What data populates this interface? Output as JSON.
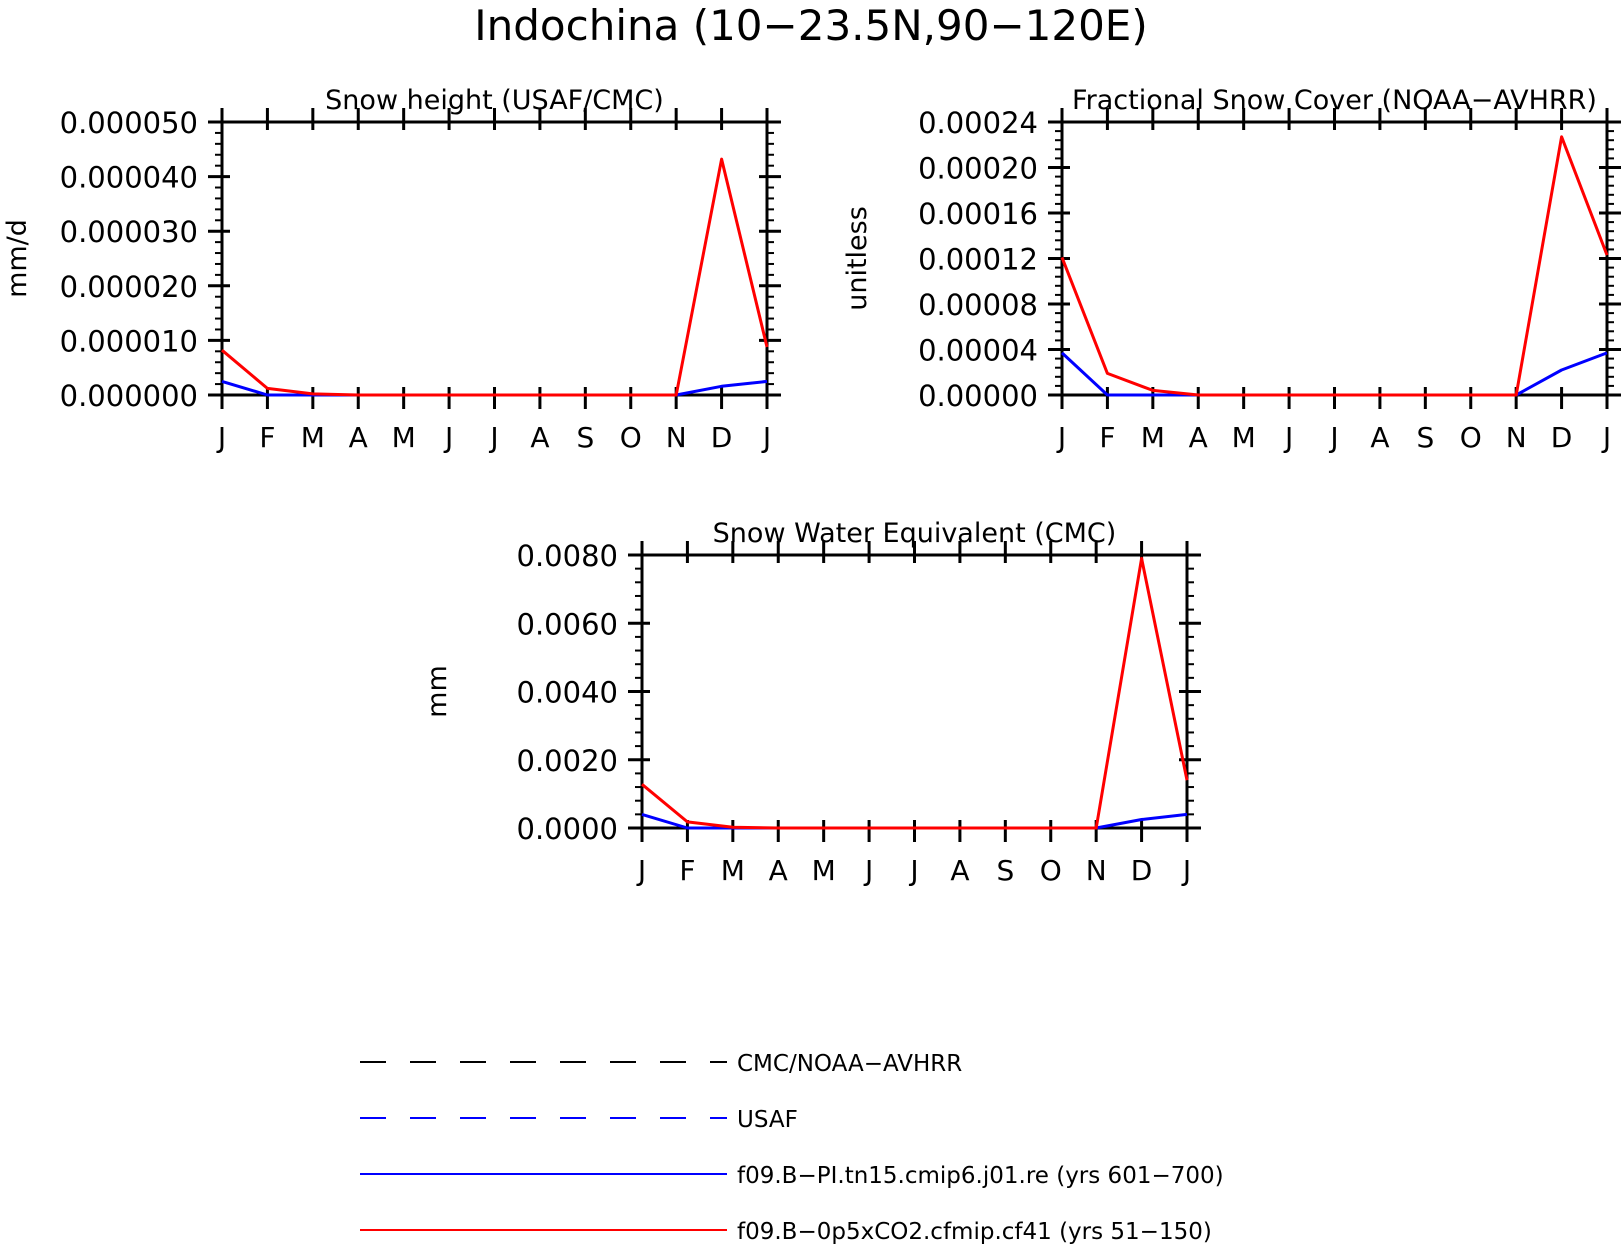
{
  "figure": {
    "title": "Indochina (10−23.5N,90−120E)"
  },
  "months": [
    "J",
    "F",
    "M",
    "A",
    "M",
    "J",
    "J",
    "A",
    "S",
    "O",
    "N",
    "D",
    "J"
  ],
  "legend": [
    {
      "label": "CMC/NOAA−AVHRR",
      "color": "#000000",
      "dash": true
    },
    {
      "label": "USAF",
      "color": "#0000ff",
      "dash": true
    },
    {
      "label": "f09.B−PI.tn15.cmip6.j01.re (yrs 601−700)",
      "color": "#0000ff",
      "dash": false
    },
    {
      "label": "f09.B−0p5xCO2.cfmip.cf41 (yrs 51−150)",
      "color": "#ff0000",
      "dash": false
    }
  ],
  "chart_data": [
    {
      "type": "line",
      "title": "Snow height (USAF/CMC)",
      "ylabel": "mm/d",
      "ylim": [
        0,
        5e-05
      ],
      "yticks": [
        "0.000000",
        "0.000010",
        "0.000020",
        "0.000030",
        "0.000040",
        "0.000050"
      ],
      "categories": [
        "J",
        "F",
        "M",
        "A",
        "M",
        "J",
        "J",
        "A",
        "S",
        "O",
        "N",
        "D",
        "J"
      ],
      "series": [
        {
          "color": "#000000",
          "values": [
            0,
            0,
            0,
            0,
            0,
            0,
            0,
            0,
            0,
            0,
            0,
            0,
            0
          ]
        },
        {
          "color": "#0000ff",
          "values": [
            2.5e-06,
            0,
            0,
            0,
            0,
            0,
            0,
            0,
            0,
            0,
            0,
            1.6e-06,
            2.5e-06
          ]
        },
        {
          "color": "#ff0000",
          "values": [
            8.2e-06,
            1.2e-06,
            2e-07,
            0,
            0,
            0,
            0,
            0,
            0,
            0,
            0,
            4.32e-05,
            8.8e-06
          ]
        }
      ]
    },
    {
      "type": "line",
      "title": "Fractional Snow Cover (NOAA−AVHRR)",
      "ylabel": "unitless",
      "ylim": [
        0,
        0.00024
      ],
      "yticks": [
        "0.00000",
        "0.00004",
        "0.00008",
        "0.00012",
        "0.00016",
        "0.00020",
        "0.00024"
      ],
      "categories": [
        "J",
        "F",
        "M",
        "A",
        "M",
        "J",
        "J",
        "A",
        "S",
        "O",
        "N",
        "D",
        "J"
      ],
      "series": [
        {
          "color": "#000000",
          "values": [
            0,
            0,
            0,
            0,
            0,
            0,
            0,
            0,
            0,
            0,
            0,
            0,
            0
          ]
        },
        {
          "color": "#0000ff",
          "values": [
            3.7e-05,
            0,
            0,
            0,
            0,
            0,
            0,
            0,
            0,
            0,
            0,
            2.2e-05,
            3.7e-05
          ]
        },
        {
          "color": "#ff0000",
          "values": [
            0.000121,
            1.9e-05,
            4e-06,
            0,
            0,
            0,
            0,
            0,
            0,
            0,
            0,
            0.000227,
            0.000123
          ]
        }
      ]
    },
    {
      "type": "line",
      "title": "Snow Water Equivalent (CMC)",
      "ylabel": "mm",
      "ylim": [
        0,
        0.008
      ],
      "yticks": [
        "0.0000",
        "0.0020",
        "0.0040",
        "0.0060",
        "0.0080"
      ],
      "categories": [
        "J",
        "F",
        "M",
        "A",
        "M",
        "J",
        "J",
        "A",
        "S",
        "O",
        "N",
        "D",
        "J"
      ],
      "series": [
        {
          "color": "#000000",
          "values": [
            0,
            0,
            0,
            0,
            0,
            0,
            0,
            0,
            0,
            0,
            0,
            0,
            0
          ]
        },
        {
          "color": "#0000ff",
          "values": [
            0.0004,
            0,
            0,
            0,
            0,
            0,
            0,
            0,
            0,
            0,
            0,
            0.00025,
            0.0004
          ]
        },
        {
          "color": "#ff0000",
          "values": [
            0.00128,
            0.00018,
            2e-05,
            0,
            0,
            0,
            0,
            0,
            0,
            0,
            0,
            0.0079,
            0.0014
          ]
        }
      ]
    }
  ]
}
